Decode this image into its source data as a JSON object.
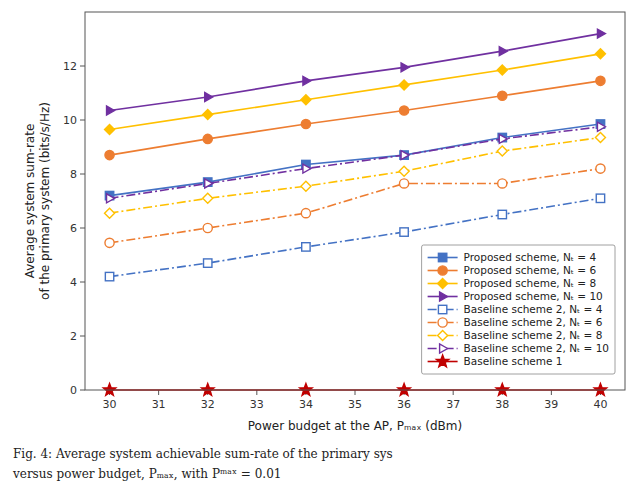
{
  "chart_data": {
    "type": "line",
    "x": [
      30,
      32,
      34,
      36,
      38,
      40
    ],
    "series": [
      {
        "name": "Proposed scheme, Nₜ = 4",
        "color": "#4472C4",
        "marker": "square",
        "line_style": "solid",
        "values": [
          7.2,
          7.7,
          8.35,
          8.7,
          9.35,
          9.85
        ]
      },
      {
        "name": "Proposed scheme, Nₜ = 6",
        "color": "#ED7D31",
        "marker": "circle",
        "line_style": "solid",
        "values": [
          8.7,
          9.3,
          9.85,
          10.35,
          10.9,
          11.45
        ]
      },
      {
        "name": "Proposed scheme, Nₜ = 8",
        "color": "#FFC000",
        "marker": "diamond",
        "line_style": "solid",
        "values": [
          9.65,
          10.2,
          10.75,
          11.3,
          11.85,
          12.45
        ]
      },
      {
        "name": "Proposed scheme, Nₜ = 10",
        "color": "#7030A0",
        "marker": "triangle-right",
        "line_style": "solid",
        "values": [
          10.35,
          10.85,
          11.45,
          11.95,
          12.55,
          13.2
        ]
      },
      {
        "name": "Baseline scheme 2, Nₜ = 4",
        "color": "#4472C4",
        "marker": "square",
        "line_style": "dashdot",
        "values": [
          4.2,
          4.7,
          5.3,
          5.85,
          6.5,
          7.1
        ]
      },
      {
        "name": "Baseline scheme 2, Nₜ = 6",
        "color": "#ED7D31",
        "marker": "circle",
        "line_style": "dashdot",
        "values": [
          5.45,
          6.0,
          6.55,
          7.65,
          7.65,
          8.2
        ]
      },
      {
        "name": "Baseline scheme 2, Nₜ = 8",
        "color": "#FFC000",
        "marker": "diamond",
        "line_style": "dashdot",
        "values": [
          6.55,
          7.1,
          7.55,
          8.1,
          8.85,
          9.35
        ]
      },
      {
        "name": "Baseline scheme 2, Nₜ = 10",
        "color": "#7030A0",
        "marker": "triangle-right",
        "line_style": "dashdot",
        "values": [
          7.1,
          7.65,
          8.2,
          8.7,
          9.3,
          9.75
        ]
      },
      {
        "name": "Baseline scheme 1",
        "color": "#C00000",
        "marker": "star",
        "line_style": "solid",
        "values": [
          0.0,
          0.0,
          0.0,
          0.0,
          0.0,
          0.0
        ]
      }
    ],
    "xlabel": "Power budget at the AP, Pₘₐₓ (dBm)",
    "ylabel": "Average system sum-rate\nof the primary system (bits/s/Hz)",
    "xlim": [
      29.5,
      40.5
    ],
    "ylim": [
      0,
      14
    ],
    "xticks": [
      30,
      31,
      32,
      33,
      34,
      35,
      36,
      37,
      38,
      39,
      40
    ],
    "yticks": [
      0,
      2,
      4,
      6,
      8,
      10,
      12
    ],
    "grid": false,
    "legend": "lower right",
    "annotations": [
      "Fig. 4:  Average system achievable sum-rate of the primary sys",
      "versus power budget, Pₘₐₓ, with Pᵐᵃˣ = 0.01"
    ]
  }
}
